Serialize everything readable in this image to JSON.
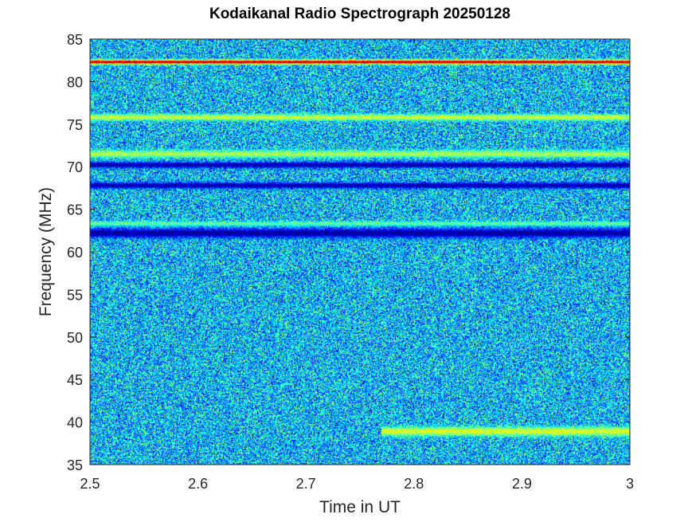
{
  "chart_data": {
    "type": "heatmap",
    "title": "Kodaikanal Radio Spectrograph  20250128",
    "xlabel": "Time in UT",
    "ylabel": "Frequency (MHz)",
    "xlim": [
      2.5,
      3.0
    ],
    "ylim": [
      35,
      85
    ],
    "xticks": [
      2.5,
      2.6,
      2.7,
      2.8,
      2.9,
      3.0
    ],
    "xtick_labels": [
      "2.5",
      "2.6",
      "2.7",
      "2.8",
      "2.9",
      "3"
    ],
    "yticks": [
      35,
      40,
      45,
      50,
      55,
      60,
      65,
      70,
      75,
      80,
      85
    ],
    "ytick_labels": [
      "35",
      "40",
      "45",
      "50",
      "55",
      "60",
      "65",
      "70",
      "75",
      "80",
      "85"
    ],
    "colormap": "jet",
    "background_level": 0.3,
    "noise_amplitude": 0.22,
    "features": [
      {
        "freq_mhz": 82.3,
        "width_mhz": 0.25,
        "level": 0.95,
        "t_start": 2.5,
        "t_end": 3.0
      },
      {
        "freq_mhz": 75.8,
        "width_mhz": 0.35,
        "level": 0.58,
        "t_start": 2.5,
        "t_end": 3.0
      },
      {
        "freq_mhz": 71.5,
        "width_mhz": 0.4,
        "level": 0.55,
        "t_start": 2.5,
        "t_end": 3.0
      },
      {
        "freq_mhz": 70.2,
        "width_mhz": 0.35,
        "level": 0.03,
        "t_start": 2.5,
        "t_end": 3.0
      },
      {
        "freq_mhz": 67.8,
        "width_mhz": 0.35,
        "level": 0.03,
        "t_start": 2.5,
        "t_end": 3.0
      },
      {
        "freq_mhz": 63.3,
        "width_mhz": 0.25,
        "level": 0.48,
        "t_start": 2.5,
        "t_end": 3.0
      },
      {
        "freq_mhz": 62.2,
        "width_mhz": 0.55,
        "level": 0.02,
        "t_start": 2.5,
        "t_end": 3.0
      },
      {
        "freq_mhz": 38.9,
        "width_mhz": 0.5,
        "level": 0.6,
        "t_start": 2.77,
        "t_end": 3.0
      }
    ]
  }
}
